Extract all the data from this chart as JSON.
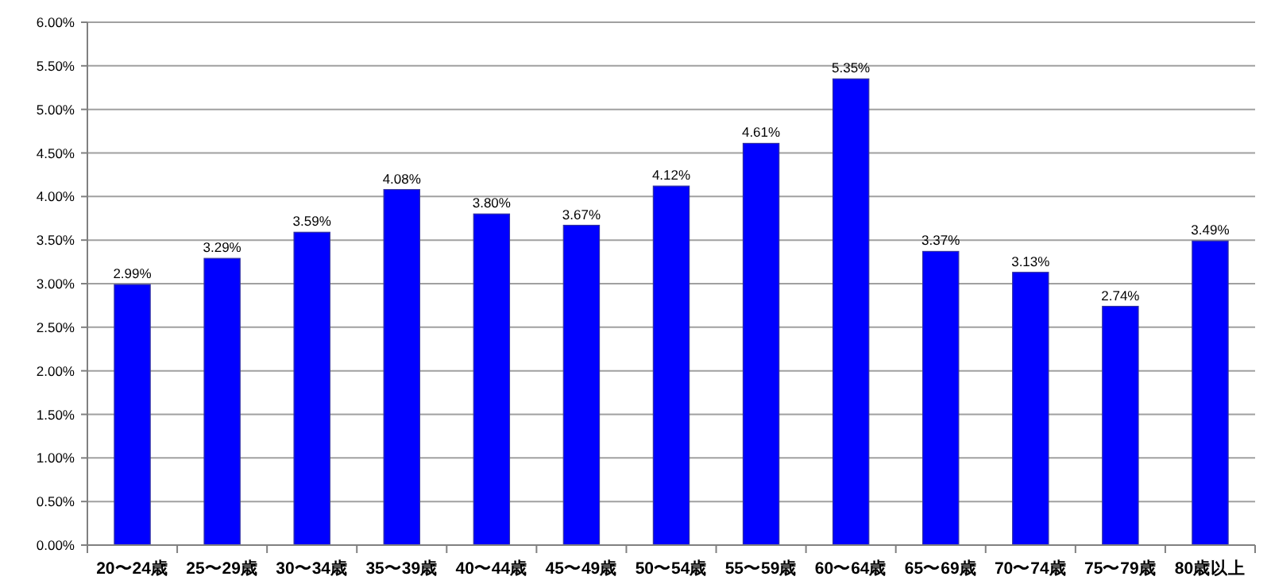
{
  "chart_data": {
    "type": "bar",
    "categories": [
      "20〜24歳",
      "25〜29歳",
      "30〜34歳",
      "35〜39歳",
      "40〜44歳",
      "45〜49歳",
      "50〜54歳",
      "55〜59歳",
      "60〜64歳",
      "65〜69歳",
      "70〜74歳",
      "75〜79歳",
      "80歳以上"
    ],
    "values": [
      2.99,
      3.29,
      3.59,
      4.08,
      3.8,
      3.67,
      4.12,
      4.61,
      5.35,
      3.37,
      3.13,
      2.74,
      3.49
    ],
    "value_labels": [
      "2.99%",
      "3.29%",
      "3.59%",
      "4.08%",
      "3.80%",
      "3.67%",
      "4.12%",
      "4.61%",
      "5.35%",
      "3.37%",
      "3.13%",
      "2.74%",
      "3.49%"
    ],
    "color": "#0000ff",
    "ylim": [
      0,
      6
    ],
    "yticks": [
      {
        "value": 0,
        "label": "0.00%"
      },
      {
        "value": 0.5,
        "label": "0.50%"
      },
      {
        "value": 1,
        "label": "1.00%"
      },
      {
        "value": 1.5,
        "label": "1.50%"
      },
      {
        "value": 2,
        "label": "2.00%"
      },
      {
        "value": 2.5,
        "label": "2.50%"
      },
      {
        "value": 3,
        "label": "3.00%"
      },
      {
        "value": 3.5,
        "label": "3.50%"
      },
      {
        "value": 4,
        "label": "4.00%"
      },
      {
        "value": 4.5,
        "label": "4.50%"
      },
      {
        "value": 5,
        "label": "5.00%"
      },
      {
        "value": 5.5,
        "label": "5.50%"
      },
      {
        "value": 6,
        "label": "6.00%"
      }
    ],
    "grid": "y"
  }
}
